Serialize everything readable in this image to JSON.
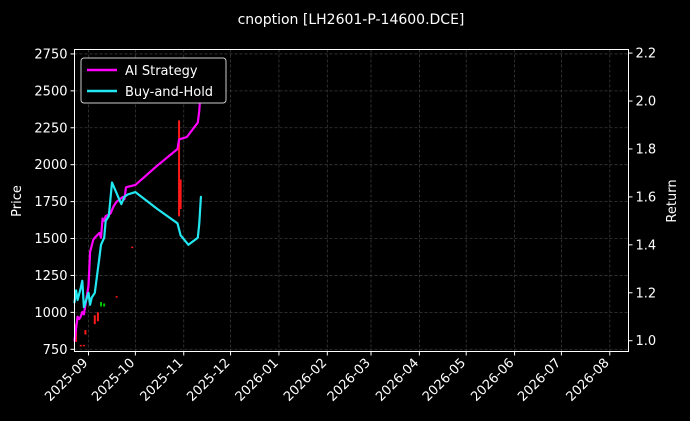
{
  "chart_data": {
    "type": "line",
    "title": "cnoption [LH2601-P-14600.DCE]",
    "ylabel_left": "Price",
    "ylabel_right": "Return",
    "grid": true,
    "legend_position": "top-left",
    "x_ticks": [
      "2025-09",
      "2025-10",
      "2025-11",
      "2025-12",
      "2026-01",
      "2026-02",
      "2026-03",
      "2026-04",
      "2026-05",
      "2026-06",
      "2026-07",
      "2026-08"
    ],
    "x_range": [
      "2025-08-23",
      "2026-08-13"
    ],
    "y_left_ticks": [
      750,
      1000,
      1250,
      1500,
      1750,
      2000,
      2250,
      2500,
      2750
    ],
    "y_left_range": [
      735,
      2780
    ],
    "y_right_ticks": [
      1.0,
      1.2,
      1.4,
      1.6,
      1.8,
      2.0,
      2.2
    ],
    "y_right_range": [
      0.955,
      2.215
    ],
    "colors": {
      "background": "#000000",
      "grid": "#3a3a3a",
      "axis": "#ffffff",
      "strategy": "#ff00ff",
      "buy_hold": "#22e6f0",
      "candle_up": "#00c800",
      "candle_down": "#ff1a1a"
    },
    "series": [
      {
        "name": "AI Strategy",
        "axis": "right",
        "points": [
          {
            "x": "2025-08-23",
            "y": 1.0
          },
          {
            "x": "2025-08-25",
            "y": 1.1
          },
          {
            "x": "2025-08-26",
            "y": 1.09
          },
          {
            "x": "2025-08-27",
            "y": 1.1
          },
          {
            "x": "2025-08-28",
            "y": 1.12
          },
          {
            "x": "2025-08-29",
            "y": 1.11
          },
          {
            "x": "2025-09-01",
            "y": 1.23
          },
          {
            "x": "2025-09-02",
            "y": 1.37
          },
          {
            "x": "2025-09-04",
            "y": 1.42
          },
          {
            "x": "2025-09-05",
            "y": 1.43
          },
          {
            "x": "2025-09-08",
            "y": 1.45
          },
          {
            "x": "2025-09-09",
            "y": 1.43
          },
          {
            "x": "2025-09-10",
            "y": 1.51
          },
          {
            "x": "2025-09-11",
            "y": 1.5
          },
          {
            "x": "2025-09-12",
            "y": 1.52
          },
          {
            "x": "2025-09-15",
            "y": 1.53
          },
          {
            "x": "2025-09-17",
            "y": 1.56
          },
          {
            "x": "2025-09-19",
            "y": 1.58
          },
          {
            "x": "2025-09-23",
            "y": 1.6
          },
          {
            "x": "2025-09-24",
            "y": 1.59
          },
          {
            "x": "2025-09-25",
            "y": 1.64
          },
          {
            "x": "2025-10-01",
            "y": 1.65
          },
          {
            "x": "2025-10-15",
            "y": 1.73
          },
          {
            "x": "2025-10-28",
            "y": 1.8
          },
          {
            "x": "2025-10-29",
            "y": 1.84
          },
          {
            "x": "2025-11-03",
            "y": 1.85
          },
          {
            "x": "2025-11-10",
            "y": 1.91
          },
          {
            "x": "2025-11-11",
            "y": 1.96
          },
          {
            "x": "2025-11-12",
            "y": 2.06
          }
        ]
      },
      {
        "name": "Buy-and-Hold",
        "axis": "right",
        "points": [
          {
            "x": "2025-08-23",
            "y": 1.16
          },
          {
            "x": "2025-08-24",
            "y": 1.21
          },
          {
            "x": "2025-08-25",
            "y": 1.17
          },
          {
            "x": "2025-08-27",
            "y": 1.22
          },
          {
            "x": "2025-08-28",
            "y": 1.25
          },
          {
            "x": "2025-08-29",
            "y": 1.14
          },
          {
            "x": "2025-09-01",
            "y": 1.2
          },
          {
            "x": "2025-09-02",
            "y": 1.15
          },
          {
            "x": "2025-09-03",
            "y": 1.18
          },
          {
            "x": "2025-09-05",
            "y": 1.2
          },
          {
            "x": "2025-09-08",
            "y": 1.35
          },
          {
            "x": "2025-09-09",
            "y": 1.4
          },
          {
            "x": "2025-09-11",
            "y": 1.43
          },
          {
            "x": "2025-09-12",
            "y": 1.5
          },
          {
            "x": "2025-09-14",
            "y": 1.52
          },
          {
            "x": "2025-09-16",
            "y": 1.66
          },
          {
            "x": "2025-09-18",
            "y": 1.63
          },
          {
            "x": "2025-09-20",
            "y": 1.6
          },
          {
            "x": "2025-09-22",
            "y": 1.57
          },
          {
            "x": "2025-09-24",
            "y": 1.6
          },
          {
            "x": "2025-09-26",
            "y": 1.61
          },
          {
            "x": "2025-10-01",
            "y": 1.62
          },
          {
            "x": "2025-10-15",
            "y": 1.55
          },
          {
            "x": "2025-10-28",
            "y": 1.49
          },
          {
            "x": "2025-10-30",
            "y": 1.44
          },
          {
            "x": "2025-11-04",
            "y": 1.4
          },
          {
            "x": "2025-11-10",
            "y": 1.43
          },
          {
            "x": "2025-11-11",
            "y": 1.49
          },
          {
            "x": "2025-11-12",
            "y": 1.6
          }
        ]
      }
    ],
    "candles": [
      {
        "x": "2025-08-24",
        "open": 800,
        "close": 920,
        "direction": "down"
      },
      {
        "x": "2025-08-27",
        "open": 770,
        "close": 780,
        "direction": "down"
      },
      {
        "x": "2025-08-29",
        "open": 770,
        "close": 780,
        "direction": "down"
      },
      {
        "x": "2025-08-30",
        "open": 850,
        "close": 880,
        "direction": "down"
      },
      {
        "x": "2025-09-05",
        "open": 920,
        "close": 980,
        "direction": "down"
      },
      {
        "x": "2025-09-07",
        "open": 940,
        "close": 1000,
        "direction": "down"
      },
      {
        "x": "2025-09-09",
        "open": 1040,
        "close": 1070,
        "direction": "up"
      },
      {
        "x": "2025-09-11",
        "open": 1040,
        "close": 1060,
        "direction": "up"
      },
      {
        "x": "2025-09-19",
        "open": 1100,
        "close": 1110,
        "direction": "down"
      },
      {
        "x": "2025-09-29",
        "open": 1440,
        "close": 1445,
        "direction": "down"
      },
      {
        "x": "2025-10-29",
        "open": 1650,
        "close": 2300,
        "direction": "down"
      },
      {
        "x": "2025-10-30",
        "open": 1700,
        "close": 1900,
        "direction": "down"
      }
    ]
  }
}
